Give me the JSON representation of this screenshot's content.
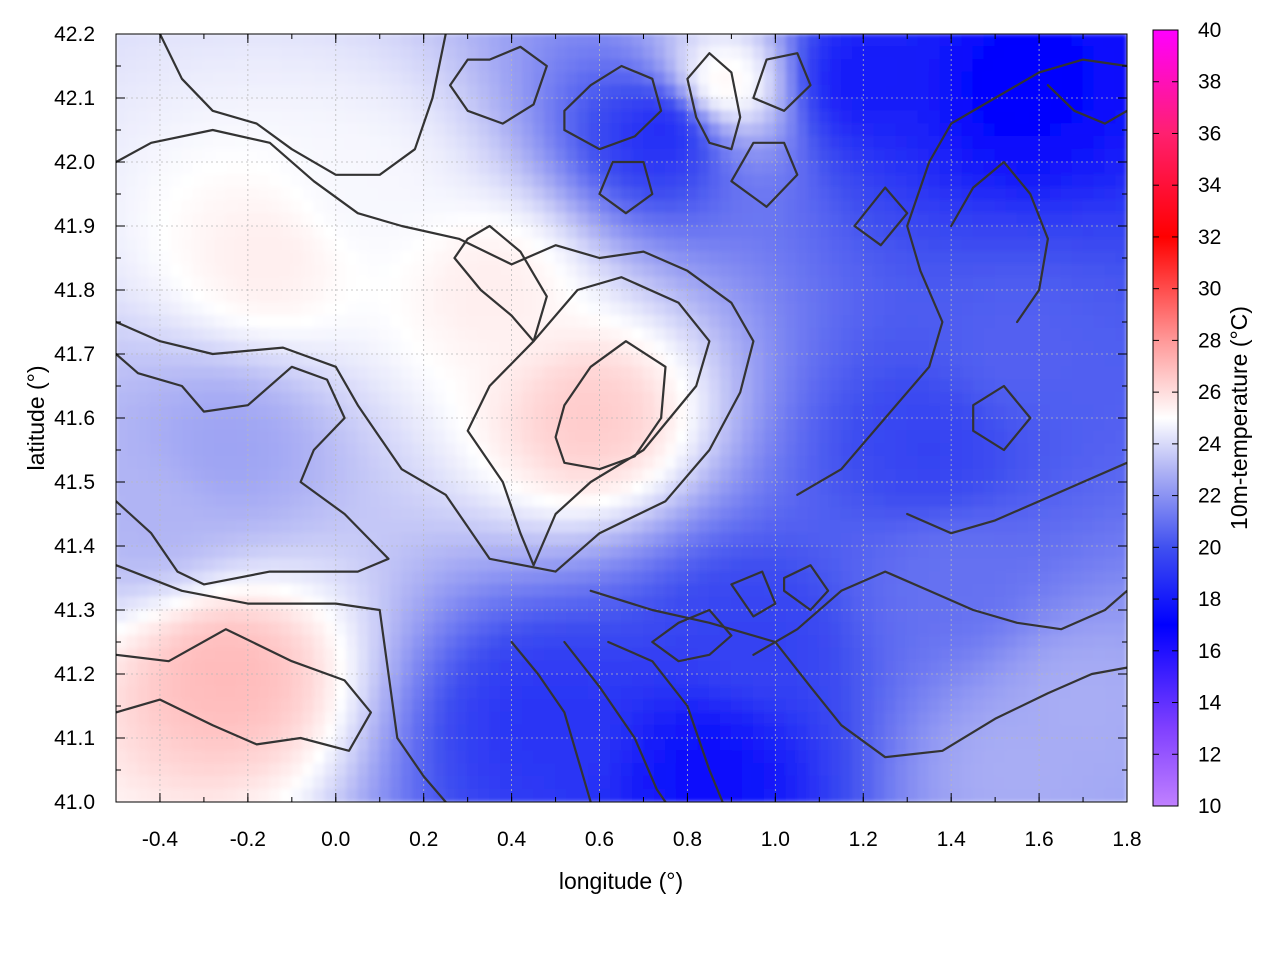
{
  "chart_data": {
    "type": "heatmap",
    "title": "",
    "xlabel": "longitude (°)",
    "ylabel": "latitude (°)",
    "colorbar_label": "10m-temperature (°C)",
    "xlim": [
      -0.5,
      1.8
    ],
    "ylim": [
      41.0,
      42.2
    ],
    "clim": [
      10,
      40
    ],
    "x_ticks": [
      -0.4,
      -0.2,
      0.0,
      0.2,
      0.4,
      0.6,
      0.8,
      1.0,
      1.2,
      1.4,
      1.6,
      1.8
    ],
    "x_tick_labels": [
      "-0.4",
      "-0.2",
      "0.0",
      "0.2",
      "0.4",
      "0.6",
      "0.8",
      "1.0",
      "1.2",
      "1.4",
      "1.6",
      "1.8"
    ],
    "y_ticks": [
      41.0,
      41.1,
      41.2,
      41.3,
      41.4,
      41.5,
      41.6,
      41.7,
      41.8,
      41.9,
      42.0,
      42.1,
      42.2
    ],
    "y_tick_labels": [
      "41.0",
      "41.1",
      "41.2",
      "41.3",
      "41.4",
      "41.5",
      "41.6",
      "41.7",
      "41.8",
      "41.9",
      "42.0",
      "42.1",
      "42.2"
    ],
    "colorbar_ticks": [
      10,
      12,
      14,
      16,
      18,
      20,
      22,
      24,
      26,
      28,
      30,
      32,
      34,
      36,
      38,
      40
    ],
    "colorbar_tick_labels": [
      "10",
      "12",
      "14",
      "16",
      "18",
      "20",
      "22",
      "24",
      "26",
      "28",
      "30",
      "32",
      "34",
      "36",
      "38",
      "40"
    ],
    "colormap_stops": [
      {
        "value": 10,
        "color": "#c080ff"
      },
      {
        "value": 13,
        "color": "#8040ff"
      },
      {
        "value": 17,
        "color": "#0000ff"
      },
      {
        "value": 20,
        "color": "#4050f0"
      },
      {
        "value": 23,
        "color": "#b0b4f4"
      },
      {
        "value": 25,
        "color": "#ffffff"
      },
      {
        "value": 28,
        "color": "#ff9898"
      },
      {
        "value": 32,
        "color": "#ff0000"
      },
      {
        "value": 36,
        "color": "#ff2070"
      },
      {
        "value": 40,
        "color": "#ff00ff"
      }
    ],
    "grid": true,
    "field_features": [
      {
        "region": "warm",
        "lon": -0.25,
        "lat": 41.2,
        "temperature": 27
      },
      {
        "region": "warm",
        "lon": -0.15,
        "lat": 41.85,
        "temperature": 25.5
      },
      {
        "region": "warm",
        "lon": 0.58,
        "lat": 41.6,
        "temperature": 26.5
      },
      {
        "region": "warm",
        "lon": 0.35,
        "lat": 41.8,
        "temperature": 25.5
      },
      {
        "region": "warm",
        "lon": 0.88,
        "lat": 42.12,
        "temperature": 25.5
      },
      {
        "region": "warm",
        "lon": 0.05,
        "lat": 41.95,
        "temperature": 24.8
      },
      {
        "region": "cool",
        "lon": -0.25,
        "lat": 41.55,
        "temperature": 22.5
      },
      {
        "region": "cool",
        "lon": -0.42,
        "lat": 41.45,
        "temperature": 23
      },
      {
        "region": "cool",
        "lon": 0.48,
        "lat": 41.12,
        "temperature": 19
      },
      {
        "region": "cool",
        "lon": 0.85,
        "lat": 41.05,
        "temperature": 17.5
      },
      {
        "region": "cool",
        "lon": 0.95,
        "lat": 41.25,
        "temperature": 19.5
      },
      {
        "region": "cool",
        "lon": 1.35,
        "lat": 41.55,
        "temperature": 19.5
      },
      {
        "region": "cool",
        "lon": 1.55,
        "lat": 41.7,
        "temperature": 20.5
      },
      {
        "region": "cool",
        "lon": 1.55,
        "lat": 42.12,
        "temperature": 17
      },
      {
        "region": "cool",
        "lon": 1.2,
        "lat": 42.13,
        "temperature": 18
      },
      {
        "region": "cool",
        "lon": 0.75,
        "lat": 42.05,
        "temperature": 18.5
      },
      {
        "region": "cool",
        "lon": 1.4,
        "lat": 41.35,
        "temperature": 21
      },
      {
        "region": "sea",
        "lon": 1.55,
        "lat": 41.05,
        "temperature": 22.8
      },
      {
        "region": "sea",
        "lon": 1.7,
        "lat": 41.15,
        "temperature": 22.8
      }
    ],
    "contours": [
      [
        [
          -0.5,
          41.23
        ],
        [
          -0.38,
          41.22
        ],
        [
          -0.25,
          41.27
        ],
        [
          -0.1,
          41.22
        ],
        [
          0.02,
          41.19
        ],
        [
          0.08,
          41.14
        ],
        [
          0.03,
          41.08
        ],
        [
          -0.08,
          41.1
        ],
        [
          -0.18,
          41.09
        ],
        [
          -0.28,
          41.12
        ],
        [
          -0.4,
          41.16
        ],
        [
          -0.5,
          41.14
        ]
      ],
      [
        [
          -0.5,
          41.37
        ],
        [
          -0.35,
          41.33
        ],
        [
          -0.2,
          41.31
        ],
        [
          0.0,
          41.31
        ],
        [
          0.1,
          41.3
        ],
        [
          0.12,
          41.2
        ],
        [
          0.14,
          41.1
        ],
        [
          0.2,
          41.04
        ],
        [
          0.25,
          41.0
        ]
      ],
      [
        [
          -0.5,
          41.47
        ],
        [
          -0.42,
          41.42
        ],
        [
          -0.36,
          41.36
        ],
        [
          -0.3,
          41.34
        ],
        [
          -0.15,
          41.36
        ],
        [
          0.05,
          41.36
        ],
        [
          0.12,
          41.38
        ],
        [
          0.02,
          41.45
        ],
        [
          -0.08,
          41.5
        ],
        [
          -0.05,
          41.55
        ],
        [
          0.02,
          41.6
        ],
        [
          -0.02,
          41.66
        ],
        [
          -0.1,
          41.68
        ],
        [
          -0.2,
          41.62
        ],
        [
          -0.3,
          41.61
        ],
        [
          -0.35,
          41.65
        ],
        [
          -0.45,
          41.67
        ],
        [
          -0.5,
          41.7
        ]
      ],
      [
        [
          -0.5,
          41.75
        ],
        [
          -0.4,
          41.72
        ],
        [
          -0.28,
          41.7
        ],
        [
          -0.12,
          41.71
        ],
        [
          0.0,
          41.68
        ],
        [
          0.05,
          41.62
        ],
        [
          0.1,
          41.57
        ],
        [
          0.15,
          41.52
        ],
        [
          0.25,
          41.48
        ],
        [
          0.3,
          41.43
        ],
        [
          0.35,
          41.38
        ],
        [
          0.5,
          41.36
        ],
        [
          0.6,
          41.42
        ],
        [
          0.75,
          41.47
        ],
        [
          0.85,
          41.55
        ],
        [
          0.92,
          41.64
        ],
        [
          0.95,
          41.72
        ],
        [
          0.9,
          41.78
        ],
        [
          0.8,
          41.83
        ],
        [
          0.7,
          41.86
        ],
        [
          0.6,
          41.85
        ],
        [
          0.5,
          41.87
        ],
        [
          0.4,
          41.84
        ],
        [
          0.28,
          41.88
        ],
        [
          0.15,
          41.9
        ],
        [
          0.05,
          41.92
        ],
        [
          -0.05,
          41.97
        ],
        [
          -0.15,
          42.03
        ],
        [
          -0.28,
          42.05
        ],
        [
          -0.42,
          42.03
        ],
        [
          -0.5,
          42.0
        ]
      ],
      [
        [
          -0.4,
          42.2
        ],
        [
          -0.35,
          42.13
        ],
        [
          -0.28,
          42.08
        ],
        [
          -0.18,
          42.06
        ],
        [
          -0.1,
          42.02
        ],
        [
          0.0,
          41.98
        ],
        [
          0.1,
          41.98
        ],
        [
          0.18,
          42.02
        ],
        [
          0.22,
          42.1
        ],
        [
          0.25,
          42.2
        ]
      ],
      [
        [
          0.45,
          41.37
        ],
        [
          0.5,
          41.45
        ],
        [
          0.58,
          41.5
        ],
        [
          0.7,
          41.55
        ],
        [
          0.82,
          41.65
        ],
        [
          0.85,
          41.72
        ],
        [
          0.78,
          41.78
        ],
        [
          0.65,
          41.82
        ],
        [
          0.55,
          41.8
        ],
        [
          0.45,
          41.72
        ],
        [
          0.35,
          41.65
        ],
        [
          0.3,
          41.58
        ],
        [
          0.38,
          41.5
        ],
        [
          0.42,
          41.42
        ],
        [
          0.45,
          41.37
        ]
      ],
      [
        [
          0.52,
          41.53
        ],
        [
          0.6,
          41.52
        ],
        [
          0.68,
          41.54
        ],
        [
          0.74,
          41.6
        ],
        [
          0.75,
          41.68
        ],
        [
          0.66,
          41.72
        ],
        [
          0.58,
          41.68
        ],
        [
          0.52,
          41.62
        ],
        [
          0.5,
          41.57
        ],
        [
          0.52,
          41.53
        ]
      ],
      [
        [
          0.27,
          41.85
        ],
        [
          0.33,
          41.8
        ],
        [
          0.4,
          41.76
        ],
        [
          0.45,
          41.72
        ],
        [
          0.48,
          41.79
        ],
        [
          0.42,
          41.86
        ],
        [
          0.35,
          41.9
        ],
        [
          0.3,
          41.88
        ],
        [
          0.27,
          41.85
        ]
      ],
      [
        [
          0.85,
          42.03
        ],
        [
          0.9,
          42.02
        ],
        [
          0.92,
          42.07
        ],
        [
          0.9,
          42.14
        ],
        [
          0.85,
          42.17
        ],
        [
          0.8,
          42.13
        ],
        [
          0.82,
          42.07
        ],
        [
          0.85,
          42.03
        ]
      ],
      [
        [
          0.58,
          41.33
        ],
        [
          0.72,
          41.3
        ],
        [
          0.85,
          41.28
        ],
        [
          1.0,
          41.25
        ],
        [
          1.08,
          41.18
        ],
        [
          1.15,
          41.12
        ],
        [
          1.25,
          41.07
        ],
        [
          1.38,
          41.08
        ],
        [
          1.5,
          41.13
        ],
        [
          1.62,
          41.17
        ],
        [
          1.72,
          41.2
        ],
        [
          1.8,
          41.21
        ]
      ],
      [
        [
          0.62,
          41.25
        ],
        [
          0.72,
          41.22
        ],
        [
          0.8,
          41.15
        ],
        [
          0.85,
          41.05
        ],
        [
          0.88,
          41.0
        ]
      ],
      [
        [
          0.52,
          41.25
        ],
        [
          0.6,
          41.18
        ],
        [
          0.68,
          41.1
        ],
        [
          0.73,
          41.02
        ],
        [
          0.75,
          41.0
        ]
      ],
      [
        [
          0.4,
          41.25
        ],
        [
          0.46,
          41.2
        ],
        [
          0.52,
          41.14
        ],
        [
          0.55,
          41.07
        ],
        [
          0.58,
          41.0
        ]
      ],
      [
        [
          0.95,
          41.23
        ],
        [
          1.05,
          41.27
        ],
        [
          1.15,
          41.33
        ],
        [
          1.25,
          41.36
        ],
        [
          1.35,
          41.33
        ],
        [
          1.45,
          41.3
        ],
        [
          1.55,
          41.28
        ],
        [
          1.65,
          41.27
        ],
        [
          1.75,
          41.3
        ],
        [
          1.8,
          41.33
        ]
      ],
      [
        [
          1.02,
          41.33
        ],
        [
          1.08,
          41.3
        ],
        [
          1.12,
          41.33
        ],
        [
          1.08,
          41.37
        ],
        [
          1.02,
          41.35
        ],
        [
          1.02,
          41.33
        ]
      ],
      [
        [
          0.9,
          41.34
        ],
        [
          0.95,
          41.29
        ],
        [
          1.0,
          41.31
        ],
        [
          0.97,
          41.36
        ],
        [
          0.9,
          41.34
        ]
      ],
      [
        [
          0.72,
          41.25
        ],
        [
          0.78,
          41.28
        ],
        [
          0.85,
          41.3
        ],
        [
          0.9,
          41.26
        ],
        [
          0.85,
          41.23
        ],
        [
          0.78,
          41.22
        ],
        [
          0.72,
          41.25
        ]
      ],
      [
        [
          1.3,
          41.45
        ],
        [
          1.4,
          41.42
        ],
        [
          1.5,
          41.44
        ],
        [
          1.6,
          41.47
        ],
        [
          1.7,
          41.5
        ],
        [
          1.8,
          41.53
        ]
      ],
      [
        [
          1.05,
          41.48
        ],
        [
          1.15,
          41.52
        ],
        [
          1.25,
          41.6
        ],
        [
          1.35,
          41.68
        ],
        [
          1.38,
          41.75
        ],
        [
          1.33,
          41.83
        ],
        [
          1.3,
          41.9
        ],
        [
          1.35,
          42.0
        ],
        [
          1.4,
          42.06
        ],
        [
          1.5,
          42.1
        ],
        [
          1.6,
          42.14
        ],
        [
          1.7,
          42.16
        ],
        [
          1.8,
          42.15
        ]
      ],
      [
        [
          1.45,
          41.58
        ],
        [
          1.52,
          41.55
        ],
        [
          1.58,
          41.6
        ],
        [
          1.52,
          41.65
        ],
        [
          1.45,
          41.62
        ],
        [
          1.45,
          41.58
        ]
      ],
      [
        [
          1.4,
          41.9
        ],
        [
          1.45,
          41.96
        ],
        [
          1.52,
          42.0
        ],
        [
          1.58,
          41.95
        ],
        [
          1.62,
          41.88
        ],
        [
          1.6,
          41.8
        ],
        [
          1.55,
          41.75
        ]
      ],
      [
        [
          1.62,
          42.12
        ],
        [
          1.68,
          42.08
        ],
        [
          1.75,
          42.06
        ],
        [
          1.8,
          42.08
        ]
      ],
      [
        [
          0.26,
          42.12
        ],
        [
          0.3,
          42.08
        ],
        [
          0.38,
          42.06
        ],
        [
          0.45,
          42.09
        ],
        [
          0.48,
          42.15
        ],
        [
          0.42,
          42.18
        ],
        [
          0.35,
          42.16
        ],
        [
          0.3,
          42.16
        ],
        [
          0.26,
          42.12
        ]
      ],
      [
        [
          0.52,
          42.05
        ],
        [
          0.6,
          42.02
        ],
        [
          0.68,
          42.04
        ],
        [
          0.74,
          42.08
        ],
        [
          0.72,
          42.13
        ],
        [
          0.65,
          42.15
        ],
        [
          0.58,
          42.12
        ],
        [
          0.52,
          42.08
        ],
        [
          0.52,
          42.05
        ]
      ],
      [
        [
          0.95,
          42.1
        ],
        [
          1.02,
          42.08
        ],
        [
          1.08,
          42.12
        ],
        [
          1.05,
          42.17
        ],
        [
          0.98,
          42.16
        ],
        [
          0.95,
          42.1
        ]
      ],
      [
        [
          0.9,
          41.97
        ],
        [
          0.98,
          41.93
        ],
        [
          1.05,
          41.98
        ],
        [
          1.02,
          42.03
        ],
        [
          0.95,
          42.03
        ],
        [
          0.9,
          41.97
        ]
      ],
      [
        [
          0.6,
          41.95
        ],
        [
          0.66,
          41.92
        ],
        [
          0.72,
          41.95
        ],
        [
          0.7,
          42.0
        ],
        [
          0.63,
          42.0
        ],
        [
          0.6,
          41.95
        ]
      ],
      [
        [
          1.18,
          41.9
        ],
        [
          1.24,
          41.87
        ],
        [
          1.3,
          41.92
        ],
        [
          1.25,
          41.96
        ],
        [
          1.18,
          41.9
        ]
      ]
    ]
  }
}
